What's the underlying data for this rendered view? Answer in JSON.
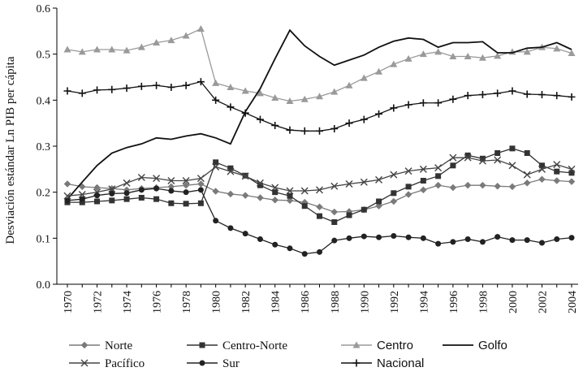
{
  "chart_data": {
    "type": "line",
    "title": "",
    "xlabel": "",
    "ylabel": "Desviación estándar Ln PIB per cápita",
    "ylim": [
      0,
      0.6
    ],
    "yticks": [
      "0.0",
      "0.1",
      "0.2",
      "0.3",
      "0.4",
      "0.5",
      "0.6"
    ],
    "xlim": [
      1970,
      2004
    ],
    "xticks": [
      "1970",
      "1972",
      "1974",
      "1976",
      "1978",
      "1980",
      "1982",
      "1984",
      "1986",
      "1988",
      "1990",
      "1992",
      "1994",
      "1996",
      "1998",
      "2000",
      "2002",
      "2004"
    ],
    "x": [
      1970,
      1971,
      1972,
      1973,
      1974,
      1975,
      1976,
      1977,
      1978,
      1979,
      1980,
      1981,
      1982,
      1983,
      1984,
      1985,
      1986,
      1987,
      1988,
      1989,
      1990,
      1991,
      1992,
      1993,
      1994,
      1995,
      1996,
      1997,
      1998,
      1999,
      2000,
      2001,
      2002,
      2003,
      2004
    ],
    "series": [
      {
        "name": "Norte",
        "color": "#7a7a7a",
        "marker": "diamond",
        "values": [
          0.218,
          0.212,
          0.21,
          0.208,
          0.205,
          0.208,
          0.21,
          0.212,
          0.215,
          0.218,
          0.202,
          0.196,
          0.193,
          0.188,
          0.183,
          0.182,
          0.178,
          0.168,
          0.157,
          0.158,
          0.162,
          0.17,
          0.18,
          0.195,
          0.205,
          0.215,
          0.21,
          0.215,
          0.215,
          0.213,
          0.212,
          0.22,
          0.228,
          0.225,
          0.223
        ]
      },
      {
        "name": "Centro-Norte",
        "color": "#333333",
        "marker": "square",
        "values": [
          0.178,
          0.178,
          0.18,
          0.182,
          0.185,
          0.188,
          0.185,
          0.176,
          0.175,
          0.176,
          0.265,
          0.252,
          0.236,
          0.215,
          0.2,
          0.192,
          0.17,
          0.148,
          0.135,
          0.15,
          0.162,
          0.18,
          0.198,
          0.212,
          0.225,
          0.235,
          0.258,
          0.28,
          0.273,
          0.285,
          0.295,
          0.285,
          0.258,
          0.245,
          0.242
        ]
      },
      {
        "name": "Centro",
        "color": "#9a9a9a",
        "marker": "triangle",
        "values": [
          0.51,
          0.505,
          0.51,
          0.51,
          0.508,
          0.515,
          0.525,
          0.53,
          0.54,
          0.555,
          0.437,
          0.428,
          0.42,
          0.415,
          0.405,
          0.398,
          0.402,
          0.408,
          0.418,
          0.432,
          0.448,
          0.462,
          0.478,
          0.49,
          0.5,
          0.505,
          0.495,
          0.495,
          0.492,
          0.496,
          0.505,
          0.505,
          0.515,
          0.512,
          0.502
        ]
      },
      {
        "name": "Golfo",
        "color": "#111111",
        "marker": "none",
        "values": [
          0.185,
          0.222,
          0.258,
          0.285,
          0.297,
          0.305,
          0.318,
          0.315,
          0.322,
          0.327,
          0.318,
          0.305,
          0.375,
          0.425,
          0.49,
          0.552,
          0.518,
          0.495,
          0.476,
          0.487,
          0.498,
          0.515,
          0.528,
          0.535,
          0.532,
          0.515,
          0.525,
          0.525,
          0.527,
          0.503,
          0.503,
          0.513,
          0.515,
          0.525,
          0.51
        ]
      },
      {
        "name": "Pacífico",
        "color": "#444444",
        "marker": "x",
        "values": [
          0.192,
          0.195,
          0.2,
          0.207,
          0.22,
          0.232,
          0.23,
          0.225,
          0.225,
          0.23,
          0.255,
          0.245,
          0.235,
          0.22,
          0.21,
          0.203,
          0.203,
          0.205,
          0.213,
          0.218,
          0.222,
          0.227,
          0.238,
          0.246,
          0.25,
          0.253,
          0.275,
          0.275,
          0.268,
          0.27,
          0.258,
          0.238,
          0.25,
          0.26,
          0.25
        ]
      },
      {
        "name": "Sur",
        "color": "#222222",
        "marker": "circle",
        "values": [
          0.182,
          0.185,
          0.193,
          0.197,
          0.198,
          0.205,
          0.208,
          0.203,
          0.2,
          0.205,
          0.138,
          0.122,
          0.11,
          0.098,
          0.086,
          0.078,
          0.066,
          0.07,
          0.095,
          0.1,
          0.104,
          0.102,
          0.105,
          0.102,
          0.1,
          0.088,
          0.092,
          0.098,
          0.092,
          0.103,
          0.096,
          0.096,
          0.09,
          0.098,
          0.101
        ]
      },
      {
        "name": "Nacional",
        "color": "#111111",
        "marker": "plus",
        "values": [
          0.42,
          0.415,
          0.422,
          0.423,
          0.426,
          0.43,
          0.432,
          0.428,
          0.432,
          0.44,
          0.4,
          0.385,
          0.372,
          0.358,
          0.345,
          0.335,
          0.333,
          0.333,
          0.338,
          0.35,
          0.358,
          0.37,
          0.383,
          0.39,
          0.394,
          0.394,
          0.402,
          0.41,
          0.412,
          0.415,
          0.42,
          0.413,
          0.412,
          0.41,
          0.407
        ]
      }
    ],
    "legend": {
      "position": "bottom",
      "columns": 4
    }
  }
}
